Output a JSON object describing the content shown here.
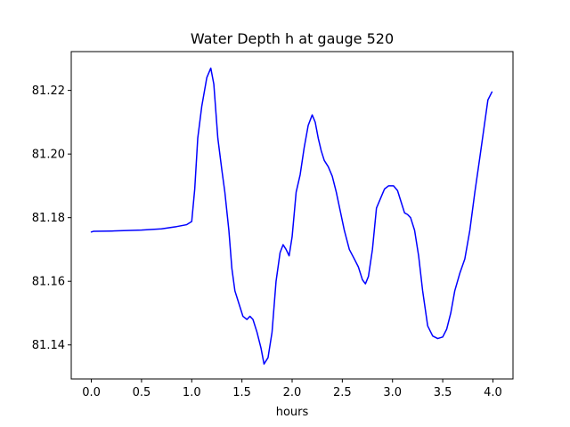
{
  "chart_data": {
    "type": "line",
    "title": "Water Depth h at gauge 520",
    "xlabel": "hours",
    "ylabel": "",
    "xlim": [
      -0.2,
      4.2
    ],
    "ylim": [
      81.1293,
      81.2322
    ],
    "xticks": [
      0.0,
      0.5,
      1.0,
      1.5,
      2.0,
      2.5,
      3.0,
      3.5,
      4.0
    ],
    "xtick_labels": [
      "0.0",
      "0.5",
      "1.0",
      "1.5",
      "2.0",
      "2.5",
      "3.0",
      "3.5",
      "4.0"
    ],
    "yticks": [
      81.14,
      81.16,
      81.18,
      81.2,
      81.22
    ],
    "ytick_labels": [
      "81.14",
      "81.16",
      "81.18",
      "81.20",
      "81.22"
    ],
    "grid": false,
    "series": [
      {
        "color": "#0000ff",
        "x": [
          0.0,
          0.02,
          0.2,
          0.5,
          0.7,
          0.85,
          0.95,
          1.0,
          1.03,
          1.06,
          1.1,
          1.15,
          1.19,
          1.22,
          1.26,
          1.3,
          1.33,
          1.37,
          1.4,
          1.43,
          1.47,
          1.51,
          1.55,
          1.58,
          1.61,
          1.65,
          1.69,
          1.72,
          1.76,
          1.8,
          1.84,
          1.88,
          1.91,
          1.94,
          1.97,
          2.0,
          2.04,
          2.08,
          2.12,
          2.16,
          2.2,
          2.23,
          2.26,
          2.29,
          2.32,
          2.36,
          2.4,
          2.44,
          2.48,
          2.52,
          2.57,
          2.62,
          2.66,
          2.7,
          2.73,
          2.76,
          2.8,
          2.84,
          2.88,
          2.92,
          2.96,
          3.01,
          3.05,
          3.09,
          3.12,
          3.15,
          3.18,
          3.22,
          3.26,
          3.3,
          3.35,
          3.4,
          3.45,
          3.5,
          3.54,
          3.58,
          3.62,
          3.67,
          3.72,
          3.77,
          3.82,
          3.87,
          3.91,
          3.95,
          3.99
        ],
        "y": [
          81.1755,
          81.1757,
          81.1758,
          81.1761,
          81.1765,
          81.1772,
          81.1778,
          81.1788,
          81.189,
          81.205,
          81.215,
          81.224,
          81.227,
          81.222,
          81.205,
          81.195,
          81.188,
          81.176,
          81.164,
          81.157,
          81.153,
          81.149,
          81.148,
          81.149,
          81.148,
          81.144,
          81.139,
          81.134,
          81.136,
          81.144,
          81.16,
          81.169,
          81.1715,
          81.17,
          81.168,
          81.174,
          81.188,
          81.1935,
          81.202,
          81.209,
          81.2123,
          81.21,
          81.205,
          81.201,
          81.198,
          81.196,
          81.193,
          81.188,
          81.182,
          81.176,
          81.17,
          81.167,
          81.1645,
          81.1605,
          81.1592,
          81.1615,
          81.17,
          81.183,
          81.186,
          81.189,
          81.19,
          81.19,
          81.1885,
          81.1845,
          81.1815,
          81.181,
          81.18,
          81.176,
          81.168,
          81.157,
          81.146,
          81.1428,
          81.142,
          81.1425,
          81.145,
          81.15,
          81.157,
          81.1625,
          81.167,
          81.176,
          81.188,
          81.199,
          81.208,
          81.217,
          81.2195
        ]
      }
    ]
  }
}
